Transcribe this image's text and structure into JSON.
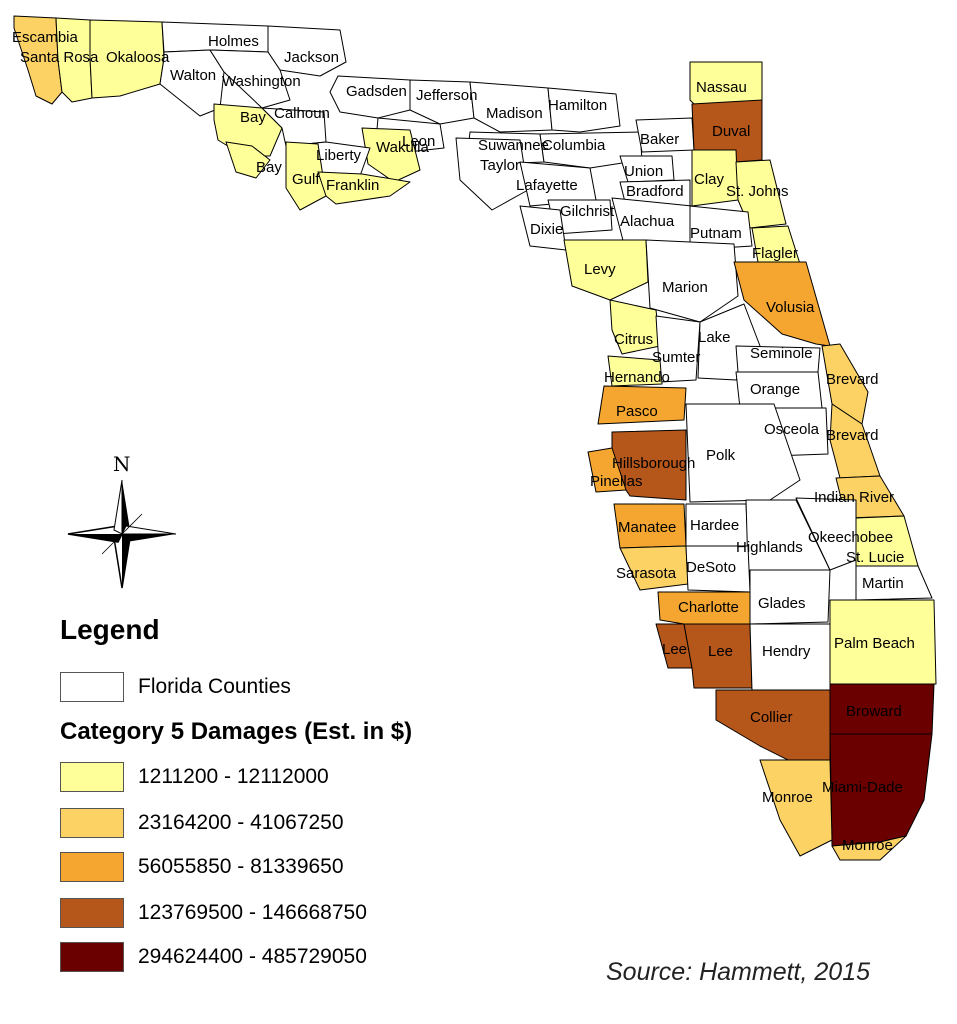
{
  "legend": {
    "title": "Legend",
    "counties_label": "Florida Counties",
    "subtitle": "Category 5 Damages (Est. in $)",
    "classes": [
      {
        "label": "1211200 - 12112000",
        "color": "#ffff99"
      },
      {
        "label": "23164200 - 41067250",
        "color": "#fdd265"
      },
      {
        "label": "56055850 - 81339650",
        "color": "#f5a631"
      },
      {
        "label": "123769500 - 146668750",
        "color": "#b5561a"
      },
      {
        "label": "294624400 - 485729050",
        "color": "#6b0000"
      }
    ],
    "none_color": "#ffffff"
  },
  "north_arrow": {
    "letter": "N"
  },
  "source": "Source: Hammett, 2015",
  "counties": [
    {
      "name": "Escambia",
      "class": 2
    },
    {
      "name": "Santa Rosa",
      "class": 1
    },
    {
      "name": "Okaloosa",
      "class": 1
    },
    {
      "name": "Holmes",
      "class": 0
    },
    {
      "name": "Jackson",
      "class": 0
    },
    {
      "name": "Walton",
      "class": 0
    },
    {
      "name": "Washington",
      "class": 0
    },
    {
      "name": "Gadsden",
      "class": 0
    },
    {
      "name": "Jefferson",
      "class": 0
    },
    {
      "name": "Madison",
      "class": 0
    },
    {
      "name": "Hamilton",
      "class": 0
    },
    {
      "name": "Nassau",
      "class": 1
    },
    {
      "name": "Bay",
      "class": 1
    },
    {
      "name": "Calhoun",
      "class": 0
    },
    {
      "name": "Leon",
      "class": 0
    },
    {
      "name": "Wakulla",
      "class": 1
    },
    {
      "name": "Liberty",
      "class": 0
    },
    {
      "name": "Suwannee",
      "class": 0
    },
    {
      "name": "Columbia",
      "class": 0
    },
    {
      "name": "Baker",
      "class": 0
    },
    {
      "name": "Duval",
      "class": 4
    },
    {
      "name": "Bay",
      "class": 1
    },
    {
      "name": "Gulf",
      "class": 1
    },
    {
      "name": "Franklin",
      "class": 1
    },
    {
      "name": "Taylor",
      "class": 0
    },
    {
      "name": "Lafayette",
      "class": 0
    },
    {
      "name": "Union",
      "class": 0
    },
    {
      "name": "Bradford",
      "class": 0
    },
    {
      "name": "Clay",
      "class": 1
    },
    {
      "name": "St. Johns",
      "class": 1
    },
    {
      "name": "Gilchrist",
      "class": 0
    },
    {
      "name": "Dixie",
      "class": 0
    },
    {
      "name": "Alachua",
      "class": 0
    },
    {
      "name": "Putnam",
      "class": 0
    },
    {
      "name": "Flagler",
      "class": 1
    },
    {
      "name": "Levy",
      "class": 1
    },
    {
      "name": "Marion",
      "class": 0
    },
    {
      "name": "Volusia",
      "class": 3
    },
    {
      "name": "Citrus",
      "class": 1
    },
    {
      "name": "Sumter",
      "class": 0
    },
    {
      "name": "Lake",
      "class": 0
    },
    {
      "name": "Seminole",
      "class": 0
    },
    {
      "name": "Hernando",
      "class": 1
    },
    {
      "name": "Orange",
      "class": 0
    },
    {
      "name": "Brevard",
      "class": 2
    },
    {
      "name": "Pasco",
      "class": 3
    },
    {
      "name": "Osceola",
      "class": 0
    },
    {
      "name": "Brevard",
      "class": 2
    },
    {
      "name": "Hillsborough",
      "class": 4
    },
    {
      "name": "Polk",
      "class": 0
    },
    {
      "name": "Pinellas",
      "class": 3
    },
    {
      "name": "Indian River",
      "class": 2
    },
    {
      "name": "Manatee",
      "class": 3
    },
    {
      "name": "Hardee",
      "class": 0
    },
    {
      "name": "Highlands",
      "class": 0
    },
    {
      "name": "Okeechobee",
      "class": 0
    },
    {
      "name": "St. Lucie",
      "class": 1
    },
    {
      "name": "Sarasota",
      "class": 2
    },
    {
      "name": "DeSoto",
      "class": 0
    },
    {
      "name": "Martin",
      "class": 0
    },
    {
      "name": "Charlotte",
      "class": 3
    },
    {
      "name": "Glades",
      "class": 0
    },
    {
      "name": "Palm Beach",
      "class": 1
    },
    {
      "name": "Lee",
      "class": 4
    },
    {
      "name": "Lee",
      "class": 4
    },
    {
      "name": "Hendry",
      "class": 0
    },
    {
      "name": "Broward",
      "class": 5
    },
    {
      "name": "Collier",
      "class": 4
    },
    {
      "name": "Miami-Dade",
      "class": 5
    },
    {
      "name": "Monroe",
      "class": 2
    },
    {
      "name": "Monroe",
      "class": 2
    }
  ]
}
